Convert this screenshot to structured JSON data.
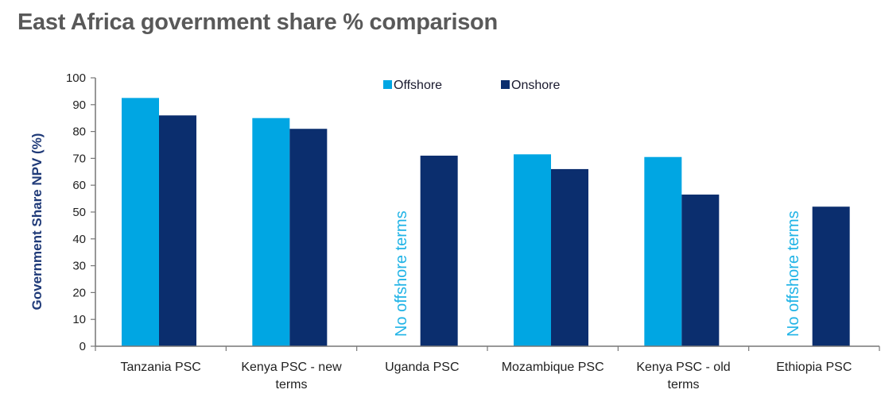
{
  "chart_data": {
    "type": "bar",
    "title": "East Africa government share % comparison",
    "ylabel": "Government Share NPV (%)",
    "xlabel": "",
    "ylim": [
      0,
      100
    ],
    "yticks": [
      0,
      10,
      20,
      30,
      40,
      50,
      60,
      70,
      80,
      90,
      100
    ],
    "categories": [
      [
        "Tanzania PSC"
      ],
      [
        "Kenya PSC - new",
        "terms"
      ],
      [
        "Uganda PSC"
      ],
      [
        "Mozambique PSC"
      ],
      [
        "Kenya PSC - old",
        "terms"
      ],
      [
        "Ethiopia PSC"
      ]
    ],
    "series": [
      {
        "name": "Offshore",
        "color": "#00a6e3",
        "values": [
          92.5,
          85,
          null,
          71.5,
          70.5,
          null
        ]
      },
      {
        "name": "Onshore",
        "color": "#0b2e6e",
        "values": [
          86,
          81,
          71,
          66,
          56.5,
          52
        ]
      }
    ],
    "annotations": [
      {
        "category_index": 2,
        "text": "No offshore terms"
      },
      {
        "category_index": 5,
        "text": "No offshore terms"
      }
    ],
    "legend": "top-center",
    "grid": false
  }
}
